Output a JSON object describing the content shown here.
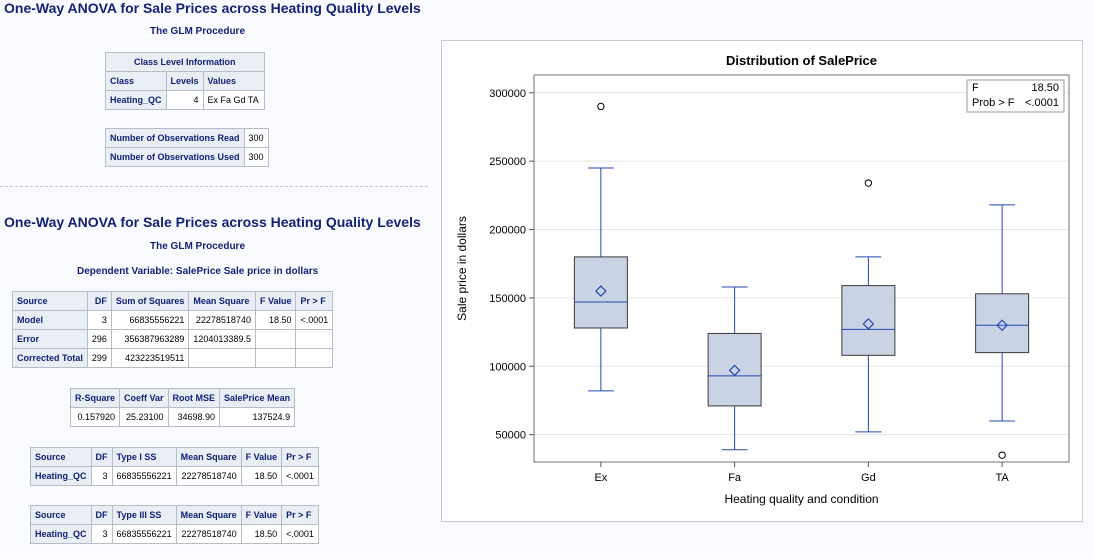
{
  "report1": {
    "title": "One-Way ANOVA for Sale Prices across Heating Quality Levels",
    "procedure": "The GLM Procedure",
    "class_info": {
      "caption": "Class Level Information",
      "headers": [
        "Class",
        "Levels",
        "Values"
      ],
      "row": [
        "Heating_QC",
        "4",
        "Ex Fa Gd TA"
      ]
    },
    "observations": {
      "rows": [
        [
          "Number of Observations Read",
          "300"
        ],
        [
          "Number of Observations Used",
          "300"
        ]
      ]
    }
  },
  "report2": {
    "title": "One-Way ANOVA for Sale Prices across Heating Quality Levels",
    "procedure": "The GLM Procedure",
    "dependent_var": "Dependent Variable: SalePrice Sale price in dollars",
    "anova": {
      "headers": [
        "Source",
        "DF",
        "Sum of Squares",
        "Mean Square",
        "F Value",
        "Pr > F"
      ],
      "rows": [
        [
          "Model",
          "3",
          "66835556221",
          "22278518740",
          "18.50",
          "<.0001"
        ],
        [
          "Error",
          "296",
          "356387963289",
          "1204013389.5",
          "",
          ""
        ],
        [
          "Corrected Total",
          "299",
          "423223519511",
          "",
          "",
          ""
        ]
      ]
    },
    "fit": {
      "headers": [
        "R-Square",
        "Coeff Var",
        "Root MSE",
        "SalePrice Mean"
      ],
      "row": [
        "0.157920",
        "25.23100",
        "34698.90",
        "137524.9"
      ]
    },
    "type1": {
      "headers": [
        "Source",
        "DF",
        "Type I SS",
        "Mean Square",
        "F Value",
        "Pr > F"
      ],
      "row": [
        "Heating_QC",
        "3",
        "66835556221",
        "22278518740",
        "18.50",
        "<.0001"
      ]
    },
    "type3": {
      "headers": [
        "Source",
        "DF",
        "Type III SS",
        "Mean Square",
        "F Value",
        "Pr > F"
      ],
      "row": [
        "Heating_QC",
        "3",
        "66835556221",
        "22278518740",
        "18.50",
        "<.0001"
      ]
    }
  },
  "chart_data": {
    "type": "box",
    "title": "Distribution of SalePrice",
    "xlabel": "Heating quality and condition",
    "ylabel": "Sale price in dollars",
    "ylim": [
      30000,
      313000
    ],
    "yticks": [
      50000,
      100000,
      150000,
      200000,
      250000,
      300000
    ],
    "grid": true,
    "inset": {
      "labels": [
        "F",
        "Prob > F"
      ],
      "values": [
        "18.50",
        "<.0001"
      ],
      "position": "top-right"
    },
    "categories": [
      "Ex",
      "Fa",
      "Gd",
      "TA"
    ],
    "boxes": [
      {
        "category": "Ex",
        "whisker_low": 82000,
        "q1": 128000,
        "median": 147000,
        "q3": 180000,
        "whisker_high": 245000,
        "mean": 155000,
        "outliers": [
          290000
        ]
      },
      {
        "category": "Fa",
        "whisker_low": 39000,
        "q1": 71000,
        "median": 93000,
        "q3": 124000,
        "whisker_high": 158000,
        "mean": 97000,
        "outliers": []
      },
      {
        "category": "Gd",
        "whisker_low": 52000,
        "q1": 108000,
        "median": 127000,
        "q3": 159000,
        "whisker_high": 180000,
        "mean": 131000,
        "outliers": [
          234000
        ]
      },
      {
        "category": "TA",
        "whisker_low": 60000,
        "q1": 110000,
        "median": 130000,
        "q3": 153000,
        "whisker_high": 218000,
        "mean": 130000,
        "outliers": [
          35000
        ]
      }
    ],
    "colors": {
      "box_fill": "#c9d3e3",
      "box_line": "#2048b3",
      "outlier": "#000000",
      "grid": "#e4e4e4"
    }
  }
}
